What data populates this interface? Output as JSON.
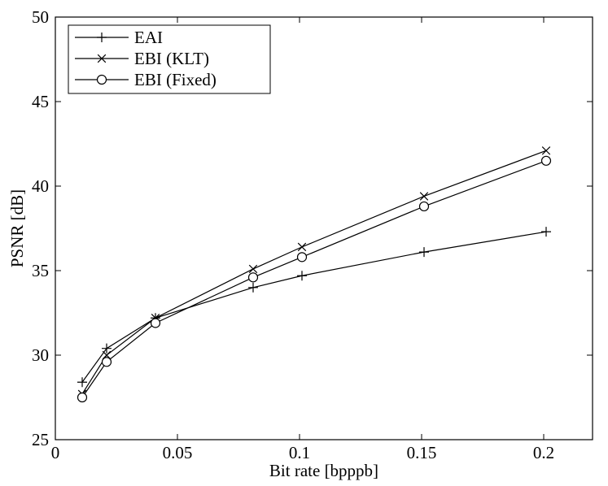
{
  "chart_data": {
    "type": "line",
    "title": "",
    "xlabel": "Bit rate [bpppb]",
    "ylabel": "PSNR [dB]",
    "xlim": [
      0,
      0.22
    ],
    "ylim": [
      25,
      50
    ],
    "grid": false,
    "legend_position": "top-left",
    "x_ticks": [
      0,
      0.05,
      0.1,
      0.15,
      0.2
    ],
    "x_tick_labels": [
      "0",
      "0.05",
      "0.1",
      "0.15",
      "0.2"
    ],
    "y_ticks": [
      25,
      30,
      35,
      40,
      45,
      50
    ],
    "y_tick_labels": [
      "25",
      "30",
      "35",
      "40",
      "45",
      "50"
    ],
    "x": [
      0.011,
      0.021,
      0.041,
      0.081,
      0.101,
      0.151,
      0.201
    ],
    "series": [
      {
        "name": "EAI",
        "marker": "plus",
        "values": [
          28.4,
          30.4,
          32.2,
          34.0,
          34.7,
          36.1,
          37.3
        ]
      },
      {
        "name": "EBI (KLT)",
        "marker": "x",
        "values": [
          27.7,
          30.0,
          32.2,
          35.1,
          36.4,
          39.4,
          42.1
        ]
      },
      {
        "name": "EBI (Fixed)",
        "marker": "circle",
        "values": [
          27.5,
          29.6,
          31.9,
          34.6,
          35.8,
          38.8,
          41.5
        ]
      }
    ],
    "line_color": "#000000"
  }
}
